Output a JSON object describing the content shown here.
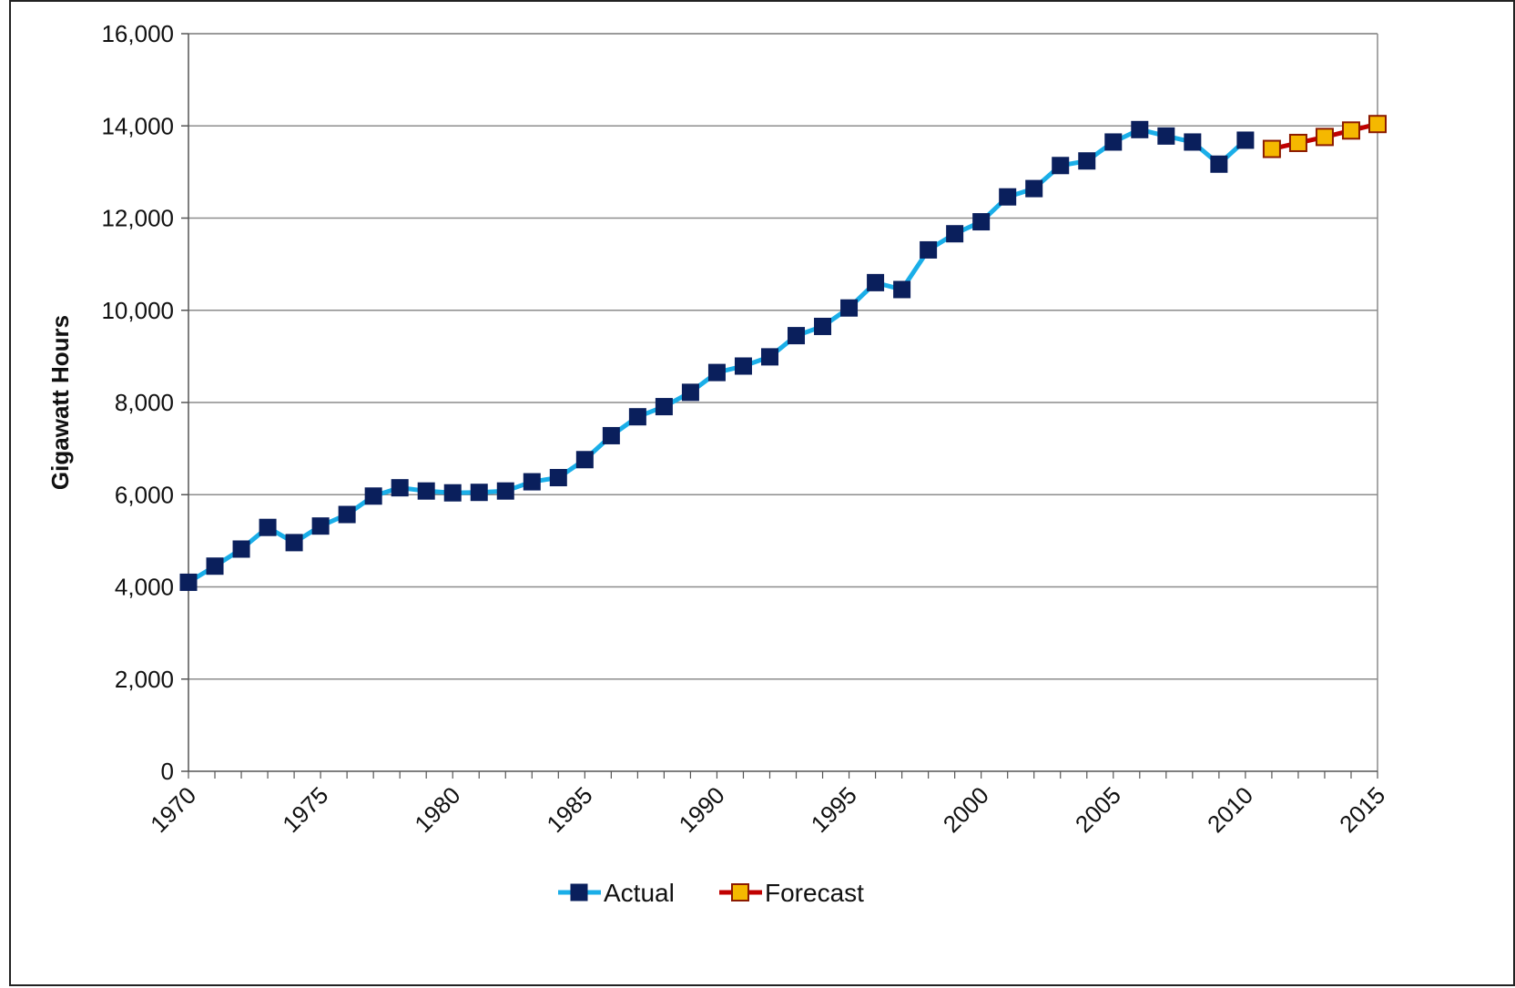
{
  "chart_data": {
    "type": "line",
    "title": "",
    "xlabel": "",
    "ylabel": "Gigawatt Hours",
    "xlim": [
      1970,
      2015
    ],
    "ylim": [
      0,
      16000
    ],
    "y_ticks": [
      0,
      2000,
      4000,
      6000,
      8000,
      10000,
      12000,
      14000,
      16000
    ],
    "y_tick_labels": [
      "0",
      "2,000",
      "4,000",
      "6,000",
      "8,000",
      "10,000",
      "12,000",
      "14,000",
      "16,000"
    ],
    "x_ticks": [
      1970,
      1975,
      1980,
      1985,
      1990,
      1995,
      2000,
      2005,
      2010,
      2015
    ],
    "x_tick_labels": [
      "1970",
      "1975",
      "1980",
      "1985",
      "1990",
      "1995",
      "2000",
      "2005",
      "2010",
      "2015"
    ],
    "grid": "horizontal",
    "legend_position": "bottom-center",
    "series": [
      {
        "name": "Actual",
        "line_color": "#1AAEE8",
        "marker_color": "#0A1F5C",
        "marker_border": "#0A1F5C",
        "x": [
          1970,
          1971,
          1972,
          1973,
          1974,
          1975,
          1976,
          1977,
          1978,
          1979,
          1980,
          1981,
          1982,
          1983,
          1984,
          1985,
          1986,
          1987,
          1988,
          1989,
          1990,
          1991,
          1992,
          1993,
          1994,
          1995,
          1996,
          1997,
          1998,
          1999,
          2000,
          2001,
          2002,
          2003,
          2004,
          2005,
          2006,
          2007,
          2008,
          2009,
          2010
        ],
        "values": [
          4100,
          4450,
          4820,
          5290,
          4960,
          5320,
          5570,
          5970,
          6150,
          6080,
          6040,
          6050,
          6080,
          6280,
          6370,
          6760,
          7280,
          7690,
          7910,
          8220,
          8650,
          8790,
          8990,
          9450,
          9650,
          10050,
          10600,
          10450,
          11310,
          11660,
          11920,
          12460,
          12640,
          13140,
          13240,
          13650,
          13920,
          13780,
          13650,
          13170,
          13690
        ]
      },
      {
        "name": "Forecast",
        "line_color": "#C00000",
        "marker_color": "#F5B800",
        "marker_border": "#8B1A00",
        "x": [
          2011,
          2012,
          2013,
          2014,
          2015
        ],
        "values": [
          13500,
          13630,
          13760,
          13900,
          14040
        ]
      }
    ]
  }
}
